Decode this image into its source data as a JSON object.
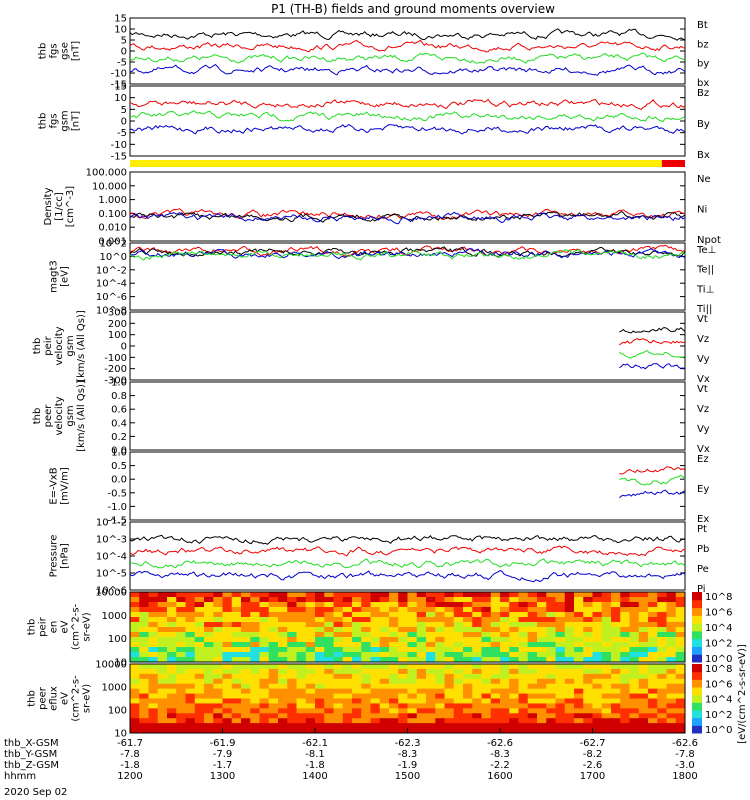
{
  "title": "P1 (TH-B) fields and ground moments overview",
  "date_label": "2020 Sep 02",
  "colors": {
    "black": "#000000",
    "red": "#ee0000",
    "green": "#22dd22",
    "blue": "#0000cc",
    "yellow": "#ffee00",
    "bar_red": "#ee0000"
  },
  "status_bar": {
    "yellow_until_hhmm": "1745",
    "red_after_hhmm": "1745"
  },
  "chart_data": [
    {
      "id": "fgs_gse",
      "type": "line",
      "ylabel": [
        "thb",
        "fgs",
        "gse",
        "[nT]"
      ],
      "ylim": [
        -15,
        15
      ],
      "yticks": [
        "15",
        "10",
        "5",
        "0",
        "-5",
        "-10",
        "-15"
      ],
      "series": [
        {
          "name": "Bt",
          "color": "#000000"
        },
        {
          "name": "bz",
          "color": "#ee0000"
        },
        {
          "name": "by",
          "color": "#22dd22"
        },
        {
          "name": "bx",
          "color": "#0000cc"
        }
      ]
    },
    {
      "id": "fgs_gsm",
      "type": "line",
      "ylabel": [
        "thb",
        "fgs",
        "gsm",
        "[nT]"
      ],
      "ylim": [
        -15,
        15
      ],
      "yticks": [
        "15",
        "10",
        "5",
        "0",
        "-5",
        "-10",
        "-15"
      ],
      "series": [
        {
          "name": "Bz",
          "color": "#ee0000"
        },
        {
          "name": "By",
          "color": "#22dd22"
        },
        {
          "name": "Bx",
          "color": "#0000cc"
        }
      ]
    },
    {
      "id": "density",
      "type": "line",
      "ylabel": [
        "Density",
        "[1/cc]",
        "[cm^-3]"
      ],
      "scale": "log",
      "ylim": [
        0.001,
        1000
      ],
      "yticks": [
        "100.000",
        "10.000",
        "1.000",
        "0.100",
        "0.010",
        "0.001"
      ],
      "series": [
        {
          "name": "Ne",
          "color": "#ee0000"
        },
        {
          "name": "Ni",
          "color": "#000000"
        },
        {
          "name": "Npot",
          "color": "#0000cc"
        }
      ]
    },
    {
      "id": "temp",
      "type": "line",
      "ylabel": [
        "magt3",
        "[eV]"
      ],
      "scale": "log",
      "yticks": [
        "10^2",
        "10^0",
        "10^-2",
        "10^-4",
        "10^-6",
        "10^-8"
      ],
      "series": [
        {
          "name": "Te⊥",
          "color": "#ee0000"
        },
        {
          "name": "Te||",
          "color": "#000000"
        },
        {
          "name": "Ti⊥",
          "color": "#0000cc"
        },
        {
          "name": "Ti||",
          "color": "#22dd22"
        }
      ]
    },
    {
      "id": "peir_vel",
      "type": "line",
      "ylabel": [
        "thb",
        "peir",
        "velocity",
        "gsm",
        "[km/s (All Qs)]"
      ],
      "ylim": [
        -300,
        300
      ],
      "yticks": [
        "300",
        "200",
        "100",
        "0",
        "-100",
        "-200",
        "-300"
      ],
      "series": [
        {
          "name": "Vt",
          "color": "#000000"
        },
        {
          "name": "Vz",
          "color": "#ee0000"
        },
        {
          "name": "Vy",
          "color": "#22dd22"
        },
        {
          "name": "Vx",
          "color": "#0000cc"
        }
      ]
    },
    {
      "id": "peer_vel",
      "type": "line",
      "ylabel": [
        "thb",
        "peer",
        "velocity",
        "gsm",
        "[km/s (All Qs)]"
      ],
      "ylim": [
        0,
        1
      ],
      "yticks": [
        "1.0",
        "0.8",
        "0.6",
        "0.4",
        "0.2",
        "0.0"
      ],
      "series": [
        {
          "name": "Vt",
          "color": "#000000"
        },
        {
          "name": "Vz",
          "color": "#ee0000"
        },
        {
          "name": "Vy",
          "color": "#22dd22"
        },
        {
          "name": "Vx",
          "color": "#0000cc"
        }
      ]
    },
    {
      "id": "efield",
      "type": "line",
      "ylabel": [
        "E=-VxB",
        "[mV/m]"
      ],
      "ylim": [
        -1.5,
        1.0
      ],
      "yticks": [
        "1.0",
        "0.5",
        "0.0",
        "-0.5",
        "-1.0",
        "-1.5"
      ],
      "series": [
        {
          "name": "Ez",
          "color": "#ee0000"
        },
        {
          "name": "Ey",
          "color": "#22dd22"
        },
        {
          "name": "Ex",
          "color": "#0000cc"
        }
      ]
    },
    {
      "id": "pressure",
      "type": "line",
      "ylabel": [
        "Pressure",
        "[nPa]"
      ],
      "scale": "log",
      "yticks": [
        "10^-2",
        "10^-3",
        "10^-4",
        "10^-5",
        "10^-6"
      ],
      "series": [
        {
          "name": "Pt",
          "color": "#000000"
        },
        {
          "name": "Pb",
          "color": "#ee0000"
        },
        {
          "name": "Pe",
          "color": "#22dd22"
        },
        {
          "name": "Pi",
          "color": "#0000cc"
        }
      ]
    },
    {
      "id": "peir_spec",
      "type": "heatmap",
      "ylabel": [
        "thb",
        "peir",
        "en",
        "eV",
        "(cm^2-s-",
        "sr-eV)"
      ],
      "yticks": [
        "10000",
        "1000",
        "100",
        "10"
      ],
      "colorbar": [
        "10^8",
        "10^6",
        "10^4",
        "10^2",
        "10^0"
      ]
    },
    {
      "id": "peer_spec",
      "type": "heatmap",
      "ylabel": [
        "thb",
        "peer",
        "eflux",
        "eV",
        "(cm^2-s-",
        "sr-eV)"
      ],
      "yticks": [
        "10000",
        "1000",
        "100",
        "10"
      ],
      "colorbar": [
        "10^8",
        "10^6",
        "10^4",
        "10^2",
        "10^0"
      ],
      "colorbar_label": "[eV/(cm^2-s-sr-eV)]"
    }
  ],
  "xaxis": {
    "hhmm": [
      "1200",
      "1300",
      "1400",
      "1500",
      "1600",
      "1700",
      "1800"
    ],
    "rows": [
      {
        "label": "thb_X-GSM",
        "values": [
          "-61.7",
          "-61.9",
          "-62.1",
          "-62.3",
          "-62.6",
          "-62.7",
          "-62.6"
        ]
      },
      {
        "label": "thb_Y-GSM",
        "values": [
          "-7.8",
          "-7.9",
          "-8.1",
          "-8.3",
          "-8.3",
          "-8.2",
          "-7.8"
        ]
      },
      {
        "label": "thb_Z-GSM",
        "values": [
          "-1.8",
          "-1.7",
          "-1.8",
          "-1.9",
          "-2.2",
          "-2.6",
          "-3.0"
        ]
      },
      {
        "label": "hhmm",
        "values": [
          "1200",
          "1300",
          "1400",
          "1500",
          "1600",
          "1700",
          "1800"
        ]
      }
    ]
  }
}
